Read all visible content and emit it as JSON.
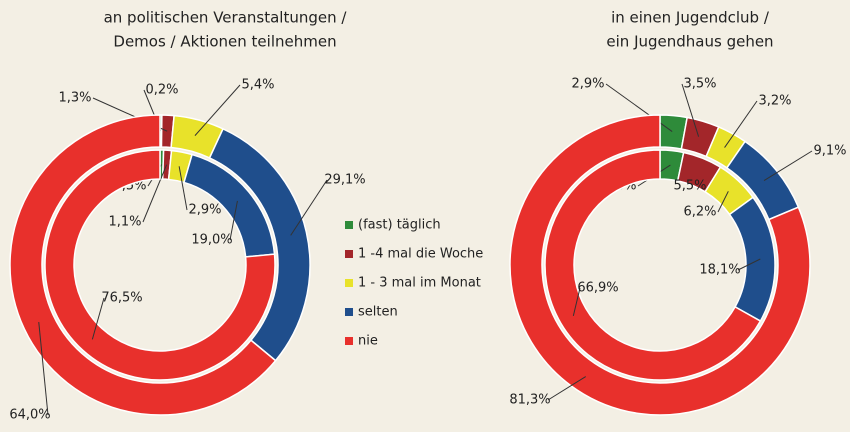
{
  "legend": {
    "categories": [
      "(fast) täglich",
      "1 -4 mal die Woche",
      "1 - 3 mal im Monat",
      "selten",
      "nie"
    ],
    "colors": [
      "#2e8b3a",
      "#a3262a",
      "#e8e22a",
      "#1f4e8c",
      "#e8302c"
    ]
  },
  "chart_data": [
    {
      "type": "pie",
      "title": [
        "an politischen Veranstaltungen /",
        "Demos / Aktionen teilnehmen"
      ],
      "series": [
        {
          "values": [
            0.2,
            1.3,
            5.4,
            29.1,
            64.0
          ],
          "value_labels": [
            "0,2%",
            "1,3%",
            "5,4%",
            "29,1%",
            "64,0%"
          ]
        },
        {
          "values": [
            0.5,
            1.1,
            2.9,
            19.0,
            76.5
          ],
          "value_labels": [
            "0,5%",
            "1,1%",
            "2,9%",
            "19,0%",
            "76,5%"
          ]
        }
      ]
    },
    {
      "type": "pie",
      "title": [
        "in einen Jugendclub /",
        "ein Jugendhaus gehen"
      ],
      "series": [
        {
          "values": [
            2.9,
            3.5,
            3.2,
            9.1,
            81.3
          ],
          "value_labels": [
            "2,9%",
            "3,5%",
            "3,2%",
            "9,1%",
            "81,3%"
          ]
        },
        {
          "values": [
            3.3,
            5.5,
            6.2,
            18.1,
            66.9
          ],
          "value_labels": [
            "3,3%",
            "5,5%",
            "6,2%",
            "18,1%",
            "66,9%"
          ]
        }
      ]
    }
  ]
}
